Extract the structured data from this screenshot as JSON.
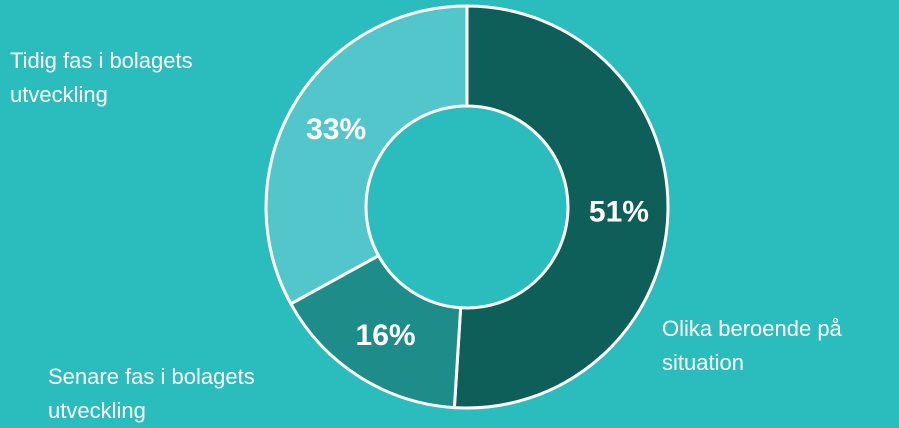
{
  "chart_data": {
    "type": "pie",
    "donut": true,
    "slices": [
      {
        "label_lines": [
          "Olika beroende på",
          "situation"
        ],
        "value": 51,
        "value_label": "51%",
        "color": "#0e5e59"
      },
      {
        "label_lines": [
          "Senare fas i bolagets",
          "utveckling"
        ],
        "value": 16,
        "value_label": "16%",
        "color": "#1e8c89"
      },
      {
        "label_lines": [
          "Tidig fas i bolagets",
          "utveckling"
        ],
        "value": 33,
        "value_label": "33%",
        "color": "#52c6cb"
      }
    ],
    "start_angle": "top",
    "direction": "clockwise",
    "legend": "none",
    "background": "#2bbcbe",
    "text_color": "#ffffff"
  }
}
